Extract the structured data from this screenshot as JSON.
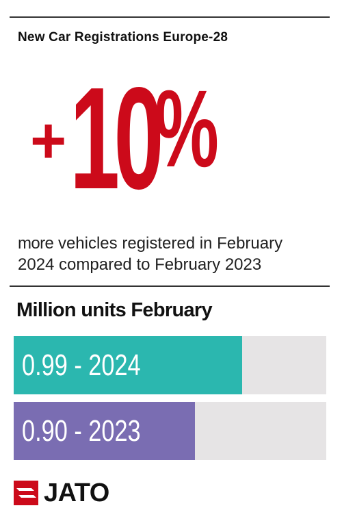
{
  "header": {
    "title": "New Car Registrations Europe-28"
  },
  "highlight": {
    "sign": "+",
    "number": "10",
    "percent": "%",
    "color": "#cc0a1a"
  },
  "description": {
    "lead": "more",
    "rest": " vehicles registered in February 2024 compared to February 2023"
  },
  "chart_data": {
    "type": "bar",
    "title": "Million units February",
    "categories": [
      "2024",
      "2023"
    ],
    "values": [
      0.99,
      0.9
    ],
    "labels": [
      "0.99 - 2024",
      "0.90 - 2023"
    ],
    "colors": [
      "#2bb7af",
      "#7a6db2"
    ],
    "track_color": "#e6e4e5",
    "orientation": "horizontal",
    "fill_fraction": [
      0.73,
      0.58
    ]
  },
  "logo": {
    "text": "JATO",
    "brand_color": "#cc0a1a"
  }
}
